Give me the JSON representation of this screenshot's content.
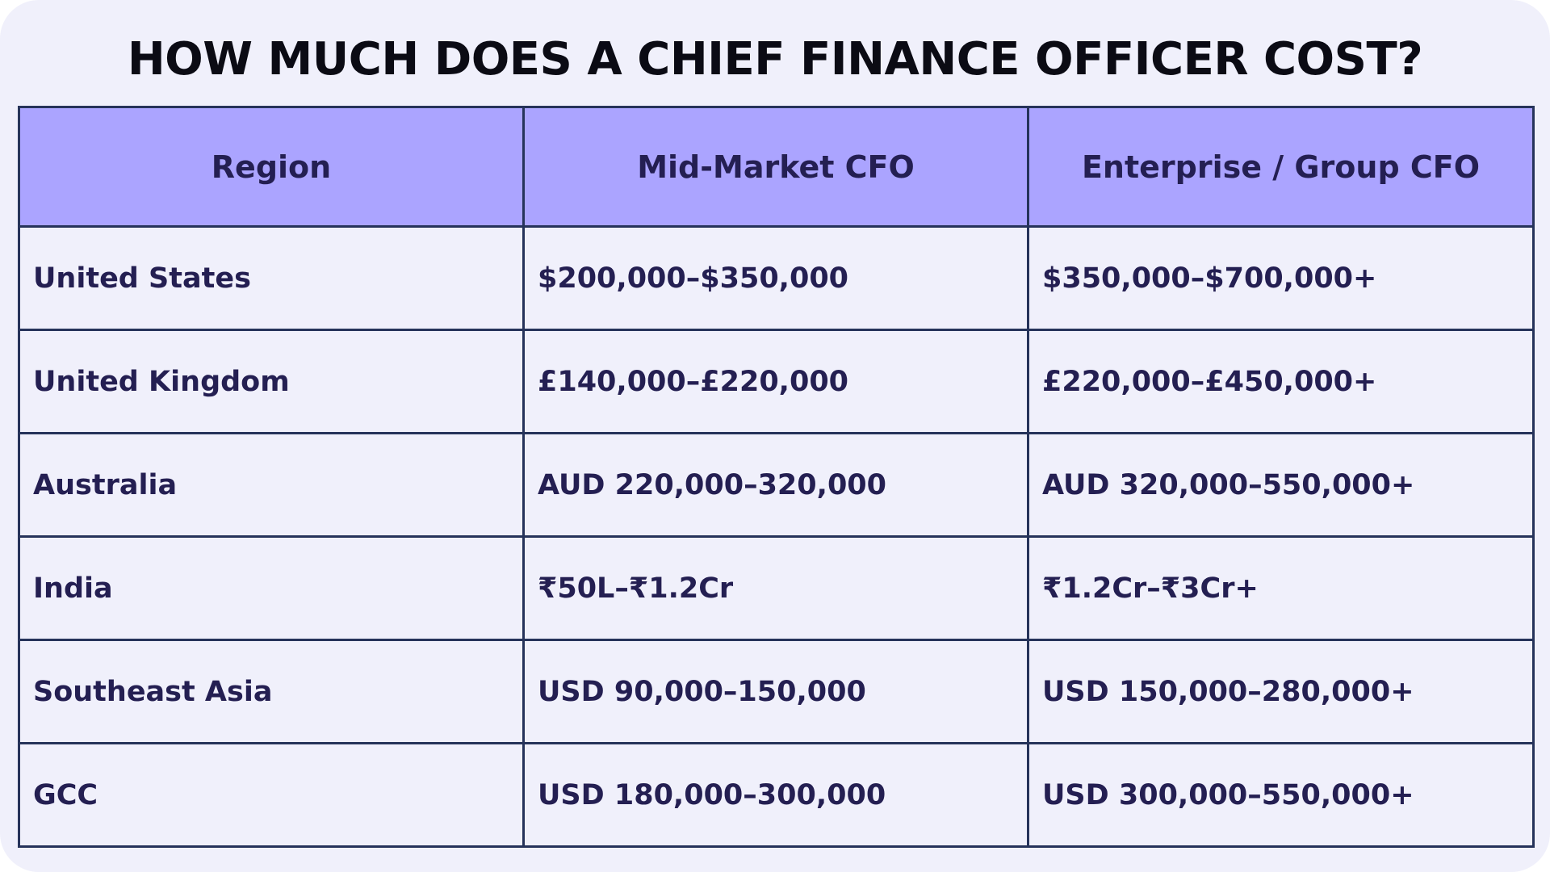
{
  "title": "HOW MUCH DOES A CHIEF FINANCE OFFICER COST?",
  "colors": {
    "page_background": "#f0f0fb",
    "header_background": "#aba4ff",
    "border": "#26335a",
    "text": "#241f52",
    "title_text": "#0b0b14"
  },
  "table": {
    "headers": [
      "Region",
      "Mid-Market CFO",
      "Enterprise / Group CFO"
    ],
    "rows": [
      [
        "United States",
        "$200,000–$350,000",
        "$350,000–$700,000+"
      ],
      [
        "United Kingdom",
        "£140,000–£220,000",
        "£220,000–£450,000+"
      ],
      [
        "Australia",
        "AUD 220,000–320,000",
        "AUD 320,000–550,000+"
      ],
      [
        "India",
        "₹50L–₹1.2Cr",
        "₹1.2Cr–₹3Cr+"
      ],
      [
        "Southeast Asia",
        "USD 90,000–150,000",
        "USD 150,000–280,000+"
      ],
      [
        "GCC",
        "USD 180,000–300,000",
        "USD 300,000–550,000+"
      ]
    ]
  }
}
